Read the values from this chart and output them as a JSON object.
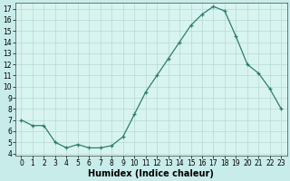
{
  "x": [
    0,
    1,
    2,
    3,
    4,
    5,
    6,
    7,
    8,
    9,
    10,
    11,
    12,
    13,
    14,
    15,
    16,
    17,
    18,
    19,
    20,
    21,
    22,
    23
  ],
  "y": [
    7.0,
    6.5,
    6.5,
    5.0,
    4.5,
    4.8,
    4.5,
    4.5,
    4.7,
    5.5,
    7.5,
    9.5,
    11.0,
    12.5,
    14.0,
    15.5,
    16.5,
    17.2,
    16.8,
    14.5,
    12.0,
    11.2,
    9.8,
    8.0
  ],
  "xlabel": "Humidex (Indice chaleur)",
  "xlim": [
    -0.5,
    23.5
  ],
  "ylim": [
    3.8,
    17.5
  ],
  "yticks": [
    4,
    5,
    6,
    7,
    8,
    9,
    10,
    11,
    12,
    13,
    14,
    15,
    16,
    17
  ],
  "xticks": [
    0,
    1,
    2,
    3,
    4,
    5,
    6,
    7,
    8,
    9,
    10,
    11,
    12,
    13,
    14,
    15,
    16,
    17,
    18,
    19,
    20,
    21,
    22,
    23
  ],
  "line_color": "#2e7d6e",
  "bg_color": "#c8ecea",
  "plot_bg": "#d8f4f0",
  "grid_color": "#b8d8d4",
  "tick_fontsize": 5.5,
  "label_fontsize": 7
}
